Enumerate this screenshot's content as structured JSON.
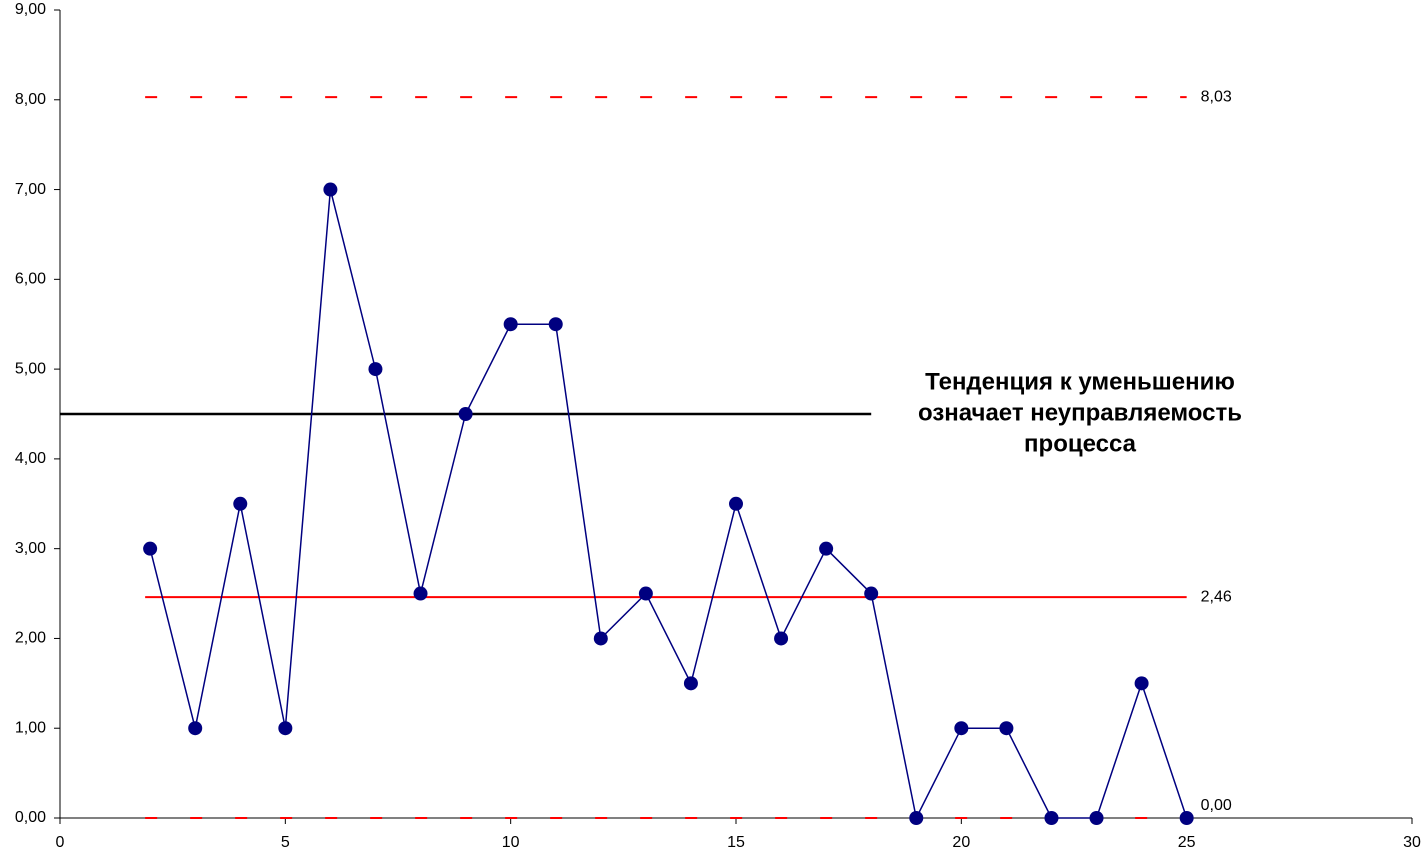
{
  "chart_data": {
    "type": "line",
    "x": [
      2,
      3,
      4,
      5,
      6,
      7,
      8,
      9,
      10,
      11,
      12,
      13,
      14,
      15,
      16,
      17,
      18,
      19,
      20,
      21,
      22,
      23,
      24,
      25
    ],
    "series": [
      {
        "color": "#000080",
        "values": [
          3,
          1,
          3.5,
          1,
          7,
          5,
          2.5,
          4.5,
          5.5,
          5.5,
          2,
          2.5,
          1.5,
          3.5,
          2,
          3,
          2.5,
          0,
          1,
          1,
          0,
          0,
          1.5,
          0
        ]
      }
    ],
    "xlim": [
      0,
      30
    ],
    "xticks": [
      0,
      5,
      10,
      15,
      20,
      25,
      30
    ],
    "ylim": [
      0,
      9
    ],
    "yticks": [
      {
        "value": 0,
        "label": "0,00"
      },
      {
        "value": 1,
        "label": "1,00"
      },
      {
        "value": 2,
        "label": "2,00"
      },
      {
        "value": 3,
        "label": "3,00"
      },
      {
        "value": 4,
        "label": "4,00"
      },
      {
        "value": 5,
        "label": "5,00"
      },
      {
        "value": 6,
        "label": "6,00"
      },
      {
        "value": 7,
        "label": "7,00"
      },
      {
        "value": 8,
        "label": "8,00"
      },
      {
        "value": 9,
        "label": "9,00"
      }
    ],
    "reference_lines": [
      {
        "value": 8.03,
        "label": "8,03",
        "color": "#ff0000",
        "style": "dashed"
      },
      {
        "value": 2.46,
        "label": "2,46",
        "color": "#ff0000",
        "style": "solid"
      },
      {
        "value": 0,
        "label": "0,00",
        "color": "#ff0000",
        "style": "dashed"
      }
    ],
    "threshold_line": {
      "value": 4.5,
      "x": [
        0,
        18
      ],
      "color": "#000000"
    },
    "annotation": [
      "Тенденция к уменьшению",
      "означает неуправляемость",
      "процесса"
    ]
  }
}
